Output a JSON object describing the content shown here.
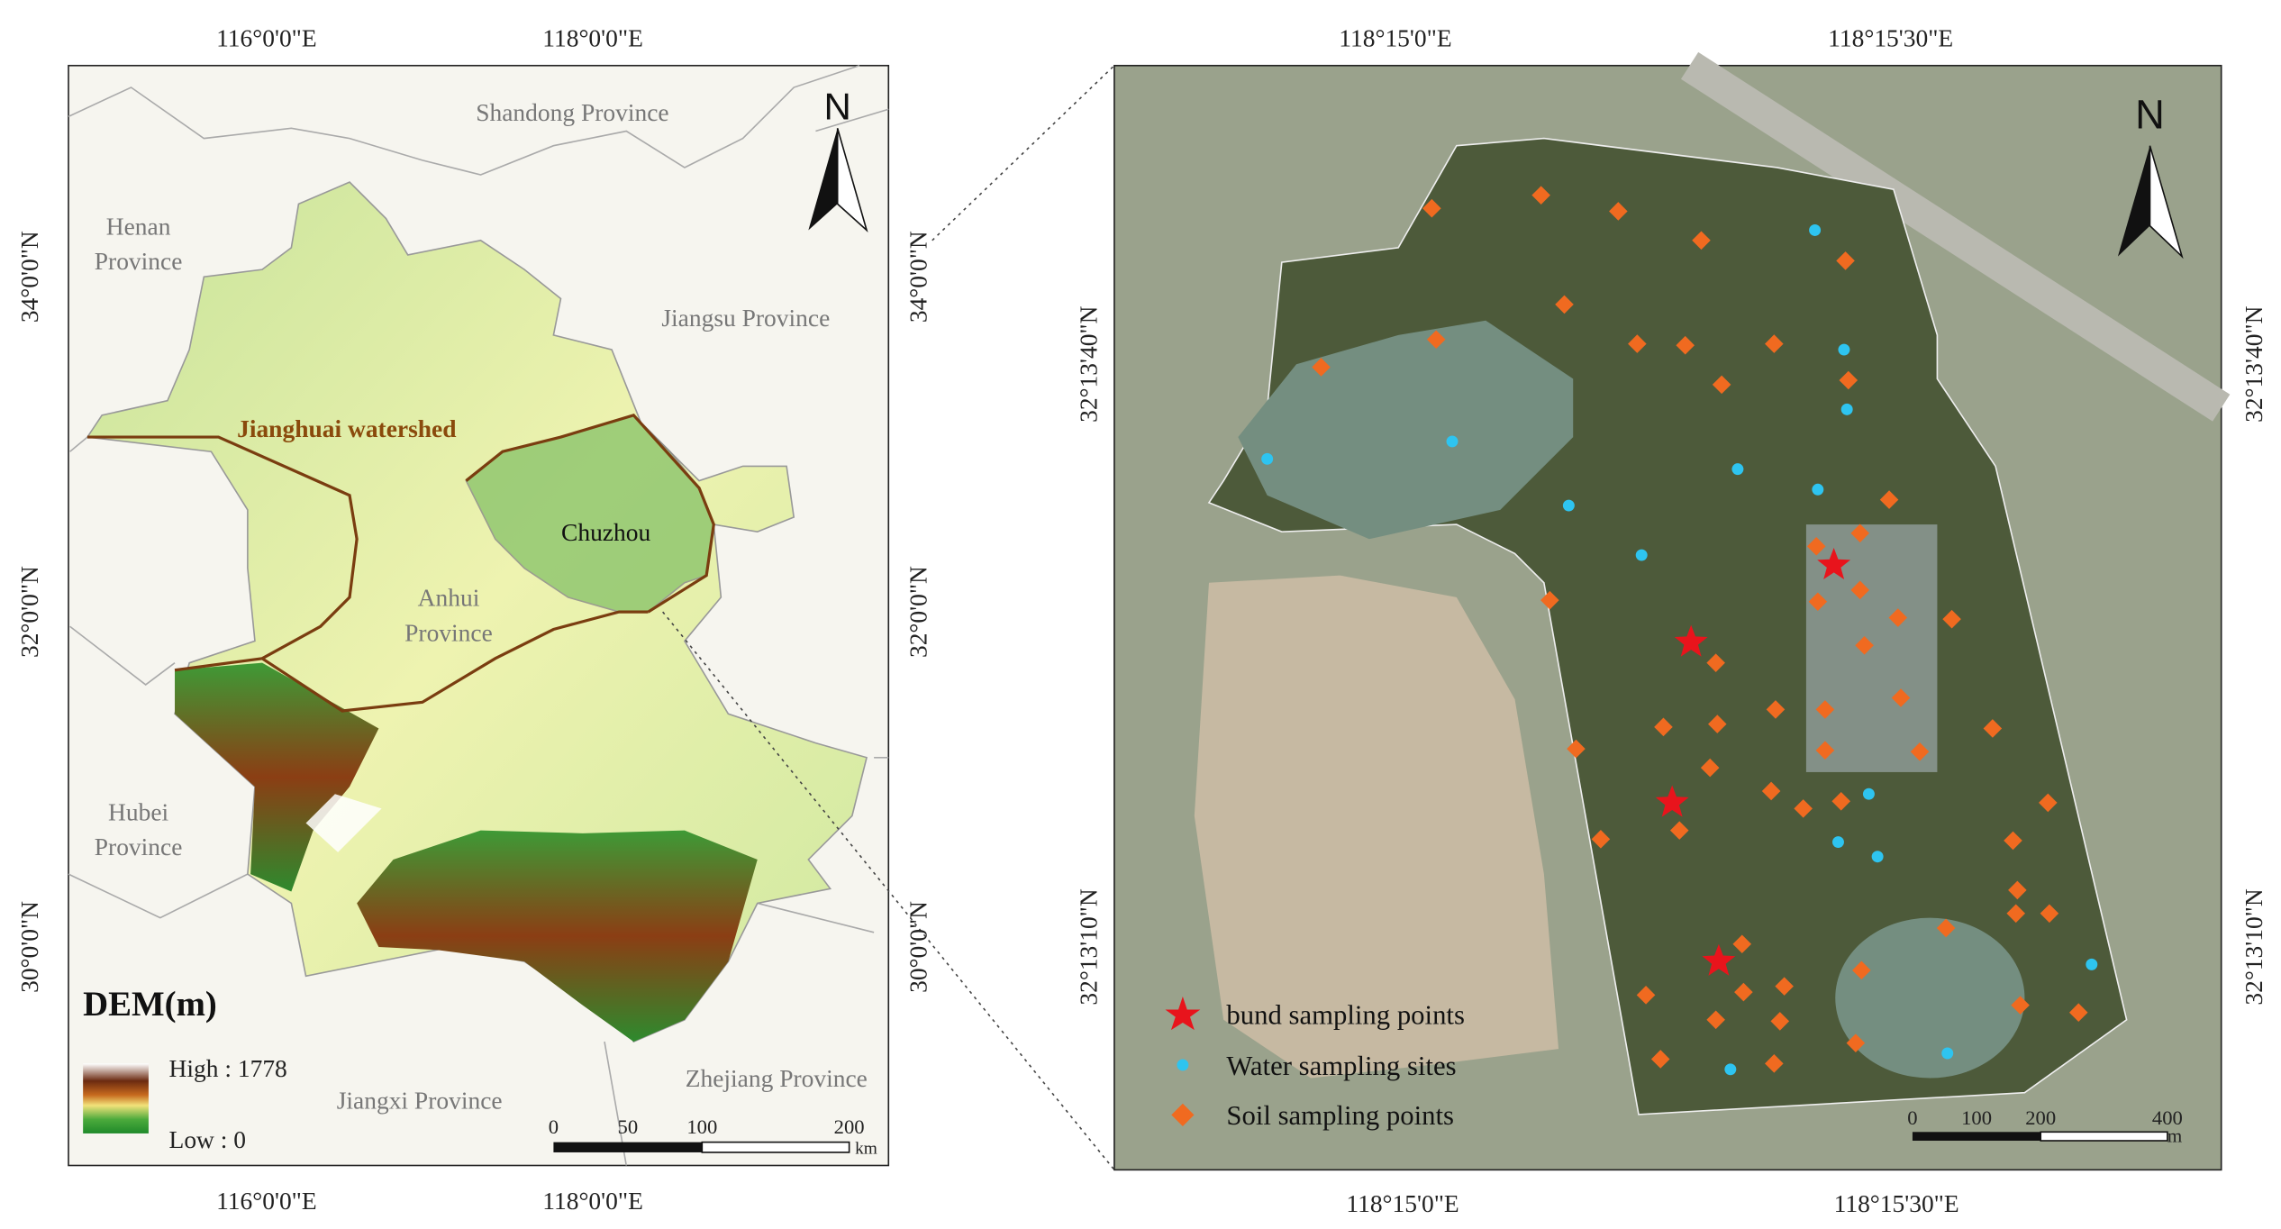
{
  "left_map": {
    "top_lon_labels": [
      "116°0'0\"E",
      "118°0'0\"E"
    ],
    "bottom_lon_labels": [
      "116°0'0\"E",
      "118°0'0\"E"
    ],
    "left_lat_labels": [
      "34°0'0\"N",
      "32°0'0\"N",
      "30°0'0\"N"
    ],
    "right_lat_labels": [
      "34°0'0\"N",
      "32°0'0\"N",
      "30°0'0\"N"
    ],
    "north": "N",
    "provinces": {
      "shandong": "Shandong Province",
      "henan": [
        "Henan",
        "Province"
      ],
      "jiangsu": "Jiangsu Province",
      "anhui": [
        "Anhui",
        "Province"
      ],
      "hubei": [
        "Hubei",
        "Province"
      ],
      "jiangxi": "Jiangxi Province",
      "zhejiang": "Zhejiang Province"
    },
    "watershed": "Jianghuai watershed",
    "city": "Chuzhou",
    "legend": {
      "title": "DEM(m)",
      "high": "High : 1778",
      "low": "Low : 0"
    },
    "scale": {
      "ticks": [
        0,
        50,
        100,
        200
      ],
      "unit": "km"
    }
  },
  "right_map": {
    "top_lon_labels": [
      "118°15'0\"E",
      "118°15'30\"E"
    ],
    "bottom_lon_labels": [
      "118°15'0\"E",
      "118°15'30\"E"
    ],
    "left_lat_labels": [
      "32°13'40\"N",
      "32°13'10\"N"
    ],
    "right_lat_labels": [
      "32°13'40\"N",
      "32°13'10\"N"
    ],
    "north": "N",
    "legend": [
      "bund sampling points",
      "Water sampling sites",
      "Soil sampling points"
    ],
    "scale": {
      "ticks": [
        0,
        100,
        200,
        400
      ],
      "unit": "m"
    }
  }
}
